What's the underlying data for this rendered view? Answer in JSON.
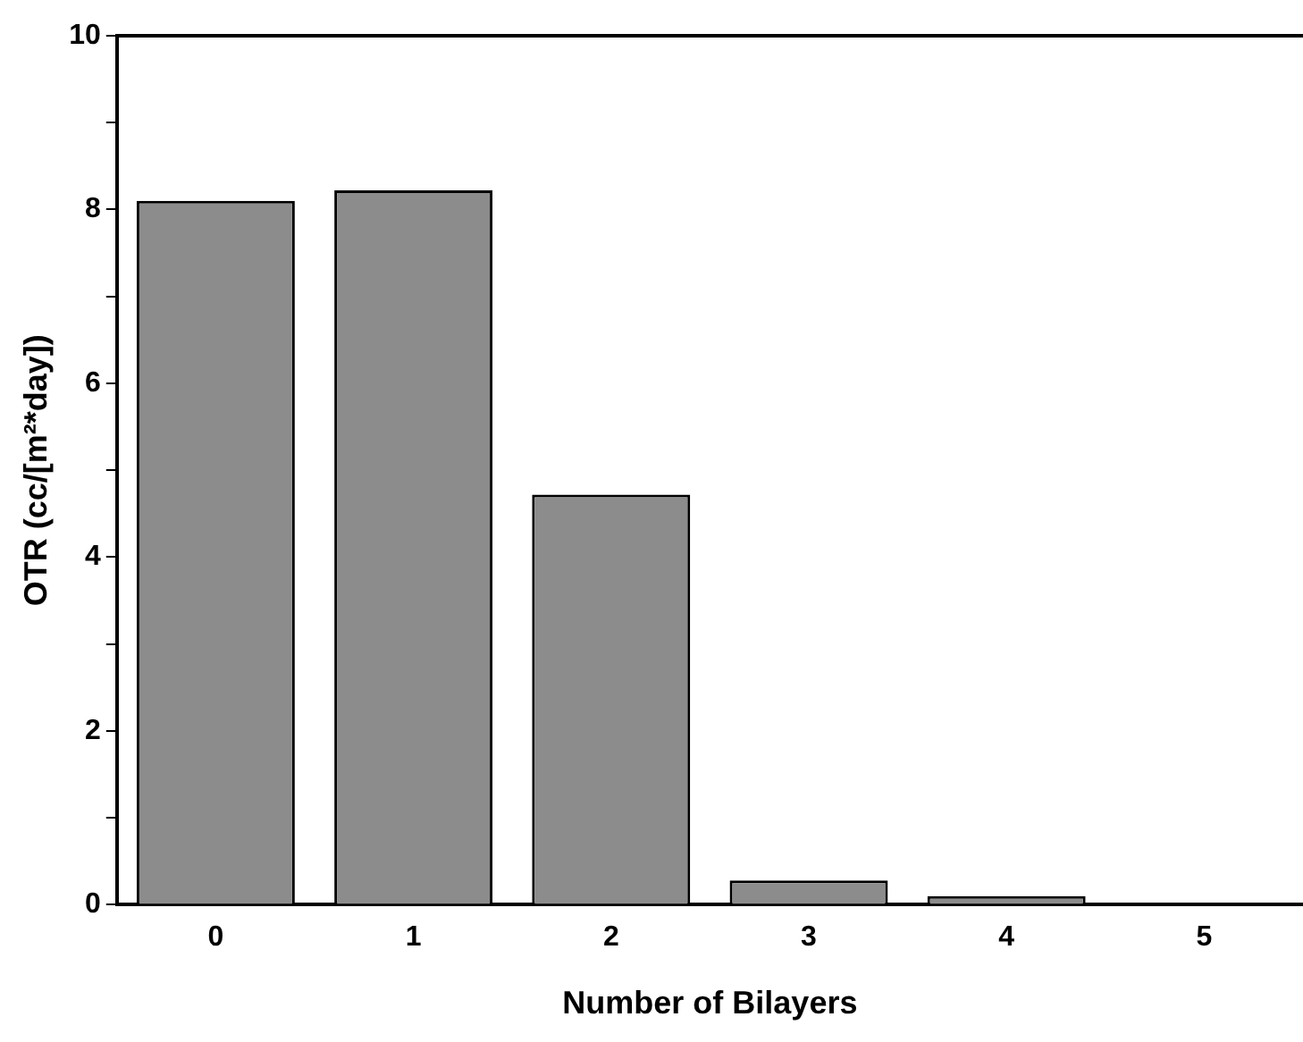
{
  "chart_data": {
    "type": "bar",
    "xlabel": "Number of Bilayers",
    "ylabel": "OTR (cc/[m²*day])",
    "categories": [
      "0",
      "1",
      "2",
      "3",
      "4",
      "5"
    ],
    "values": [
      8.1,
      8.22,
      4.72,
      0.28,
      0.1,
      null
    ],
    "color": "#8c8c8c",
    "ylim": [
      0,
      10
    ],
    "yticks": [
      0,
      {
        "value": 1,
        "label": null
      },
      2,
      {
        "value": 3,
        "label": null
      },
      4,
      {
        "value": 5,
        "label": null
      },
      6,
      {
        "value": 7,
        "label": null
      },
      8,
      {
        "value": 9,
        "label": null
      },
      10
    ],
    "grid": false,
    "legend": false
  }
}
